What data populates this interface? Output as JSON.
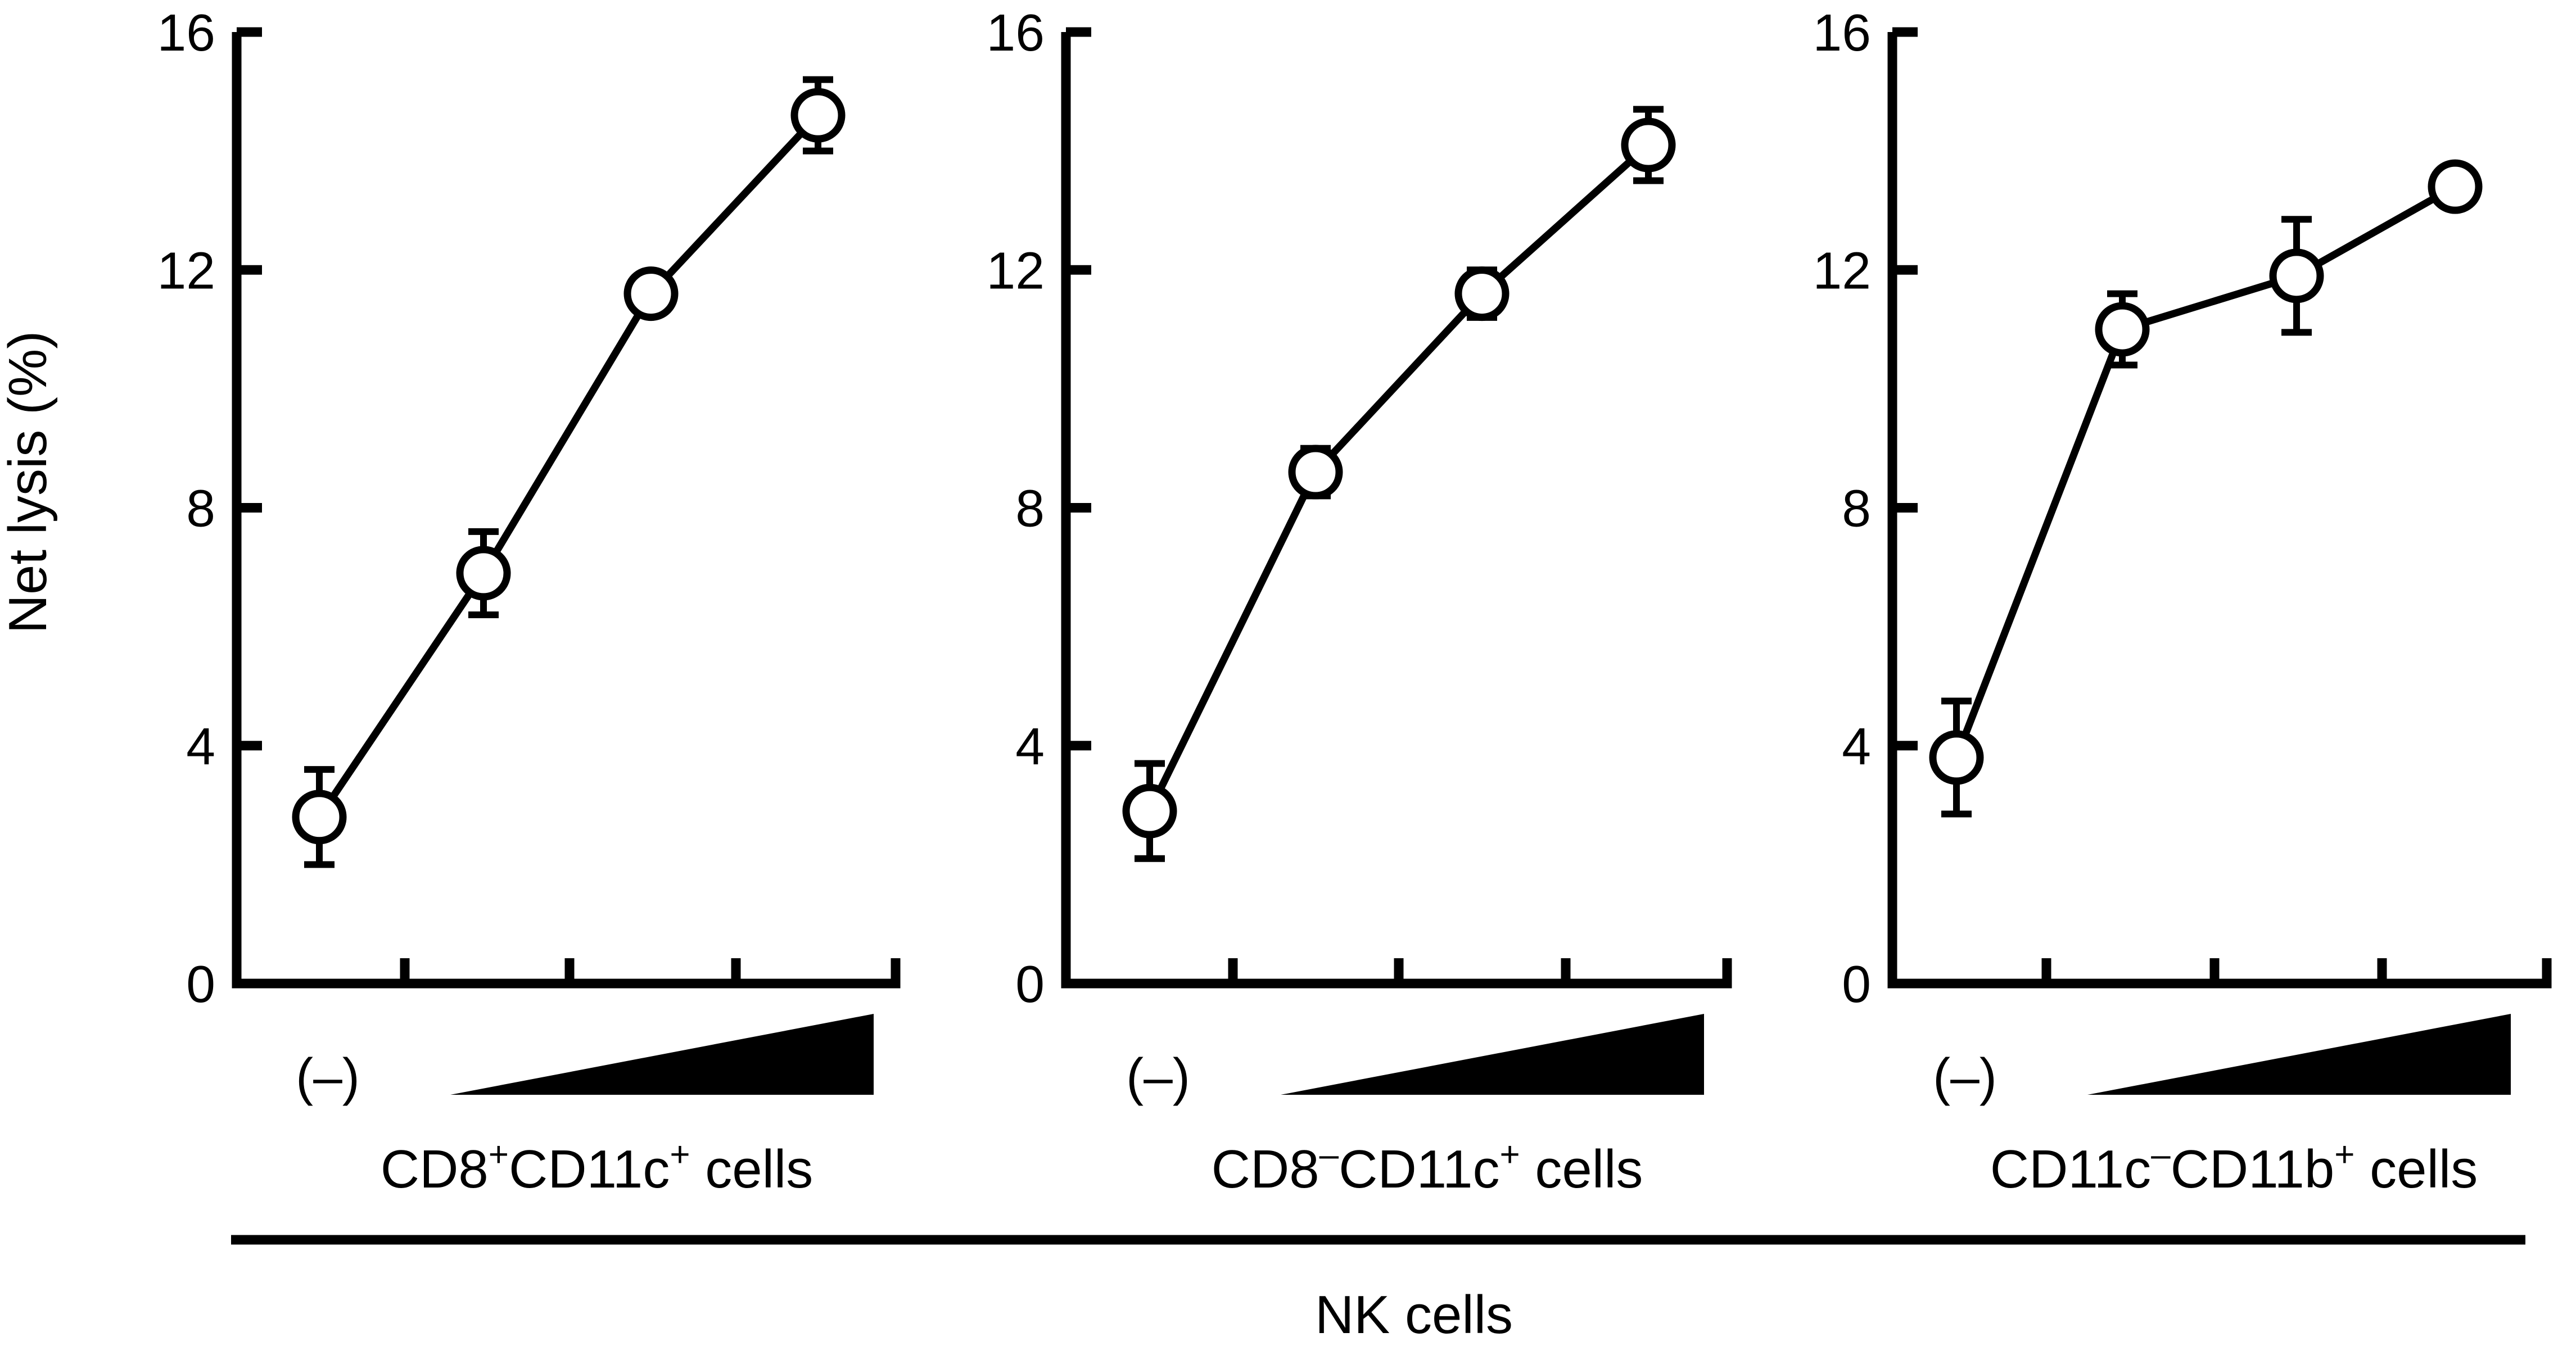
{
  "chart_data": {
    "type": "line",
    "ylabel": "Net lysis (%)",
    "ylim": [
      0,
      16
    ],
    "yticks": [
      "0",
      "4",
      "8",
      "12",
      "16"
    ],
    "group_label": "NK cells",
    "panels": [
      {
        "id": "p1",
        "categories": [
          "(–)",
          "",
          "",
          ""
        ],
        "dose_ramp": true,
        "values": [
          2.8,
          6.9,
          11.6,
          14.6
        ],
        "errors": [
          0.8,
          0.7,
          0.3,
          0.6
        ],
        "label": {
          "a": "CD8",
          "sup1": "+",
          "b": "CD11c",
          "sup2": "+",
          "c": " cells"
        }
      },
      {
        "id": "p2",
        "categories": [
          "(–)",
          "",
          "",
          ""
        ],
        "dose_ramp": true,
        "values": [
          2.9,
          8.6,
          11.6,
          14.1
        ],
        "errors": [
          0.8,
          0.4,
          0.4,
          0.6
        ],
        "label": {
          "a": "CD8",
          "sup1": "–",
          "b": "CD11c",
          "sup2": "+",
          "c": " cells"
        }
      },
      {
        "id": "p3",
        "categories": [
          "(–)",
          "",
          "",
          ""
        ],
        "dose_ramp": true,
        "values": [
          3.8,
          11.0,
          11.9,
          13.4
        ],
        "errors": [
          0.95,
          0.6,
          0.95,
          0.15
        ],
        "label": {
          "a": "CD11c",
          "sup1": "–",
          "b": "CD11b",
          "sup2": "+",
          "c": " cells"
        }
      }
    ]
  }
}
